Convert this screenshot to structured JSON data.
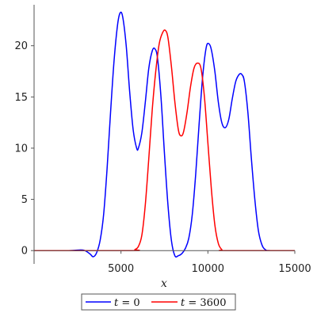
{
  "chart_data": {
    "type": "line",
    "xlabel": "x",
    "ylabel": "",
    "xlim": [
      0,
      15000
    ],
    "ylim": [
      -1.3,
      24
    ],
    "x_ticks": [
      5000,
      10000,
      15000
    ],
    "y_ticks": [
      0,
      5,
      10,
      15,
      20
    ],
    "x_tick_labels": [
      "5000",
      "10000",
      "15000"
    ],
    "y_tick_labels": [
      "0",
      "5",
      "10",
      "15",
      "20"
    ],
    "grid": false,
    "legend_position": "bottom",
    "series": [
      {
        "name": "t = 0",
        "color": "#0000ff",
        "points": [
          [
            0,
            0
          ],
          [
            2000,
            0
          ],
          [
            2800,
            0.05
          ],
          [
            3200,
            -0.3
          ],
          [
            3400,
            -0.6
          ],
          [
            3600,
            -0.2
          ],
          [
            3800,
            1.0
          ],
          [
            4000,
            3.5
          ],
          [
            4200,
            8.0
          ],
          [
            4400,
            13.5
          ],
          [
            4600,
            18.5
          ],
          [
            4800,
            22.0
          ],
          [
            4950,
            23.2
          ],
          [
            5100,
            22.8
          ],
          [
            5300,
            20.0
          ],
          [
            5500,
            15.5
          ],
          [
            5700,
            11.8
          ],
          [
            5900,
            10.0
          ],
          [
            6000,
            10.0
          ],
          [
            6200,
            11.5
          ],
          [
            6400,
            14.5
          ],
          [
            6600,
            17.8
          ],
          [
            6800,
            19.5
          ],
          [
            6950,
            19.7
          ],
          [
            7100,
            18.8
          ],
          [
            7300,
            15.0
          ],
          [
            7500,
            9.5
          ],
          [
            7700,
            4.5
          ],
          [
            7900,
            1.0
          ],
          [
            8100,
            -0.5
          ],
          [
            8300,
            -0.5
          ],
          [
            8500,
            -0.3
          ],
          [
            8700,
            0.2
          ],
          [
            8900,
            1.2
          ],
          [
            9100,
            3.5
          ],
          [
            9300,
            7.5
          ],
          [
            9500,
            12.5
          ],
          [
            9700,
            17.0
          ],
          [
            9900,
            19.8
          ],
          [
            10050,
            20.2
          ],
          [
            10200,
            19.6
          ],
          [
            10400,
            17.5
          ],
          [
            10600,
            14.5
          ],
          [
            10800,
            12.5
          ],
          [
            11000,
            12.0
          ],
          [
            11200,
            12.8
          ],
          [
            11400,
            14.8
          ],
          [
            11600,
            16.5
          ],
          [
            11800,
            17.2
          ],
          [
            11950,
            17.2
          ],
          [
            12100,
            16.5
          ],
          [
            12300,
            13.5
          ],
          [
            12500,
            9.0
          ],
          [
            12700,
            5.0
          ],
          [
            12900,
            2.0
          ],
          [
            13100,
            0.6
          ],
          [
            13300,
            0.1
          ],
          [
            13600,
            0
          ],
          [
            15000,
            0
          ]
        ]
      },
      {
        "name": "t = 3600",
        "color": "#ff0000",
        "points": [
          [
            0,
            0
          ],
          [
            5600,
            0
          ],
          [
            5800,
            0.1
          ],
          [
            6000,
            0.4
          ],
          [
            6200,
            1.5
          ],
          [
            6400,
            4.5
          ],
          [
            6600,
            9.0
          ],
          [
            6800,
            13.8
          ],
          [
            7000,
            17.5
          ],
          [
            7200,
            20.2
          ],
          [
            7400,
            21.3
          ],
          [
            7550,
            21.5
          ],
          [
            7700,
            20.8
          ],
          [
            7900,
            18.0
          ],
          [
            8100,
            14.5
          ],
          [
            8300,
            11.8
          ],
          [
            8450,
            11.2
          ],
          [
            8600,
            11.6
          ],
          [
            8800,
            13.5
          ],
          [
            9000,
            16.0
          ],
          [
            9200,
            17.8
          ],
          [
            9400,
            18.3
          ],
          [
            9600,
            17.8
          ],
          [
            9800,
            15.0
          ],
          [
            10000,
            10.5
          ],
          [
            10200,
            6.0
          ],
          [
            10400,
            2.5
          ],
          [
            10600,
            0.7
          ],
          [
            10800,
            0.1
          ],
          [
            11000,
            0
          ],
          [
            15000,
            0
          ]
        ]
      }
    ]
  },
  "legend": {
    "items": [
      {
        "var": "t",
        "rest": " = 0",
        "color": "#0000ff"
      },
      {
        "var": "t",
        "rest": " = 3600",
        "color": "#ff0000"
      }
    ]
  }
}
